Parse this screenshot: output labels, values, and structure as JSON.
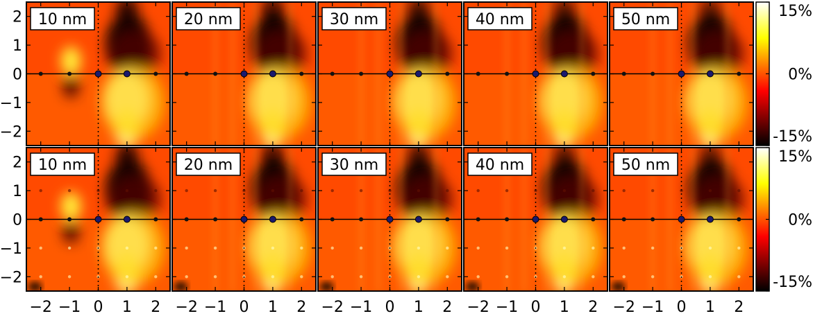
{
  "chart_data": [
    {
      "type": "heatmap",
      "row": "top",
      "panels": [
        {
          "label": "10 nm",
          "vortex_x": -1,
          "strength": 1.0
        },
        {
          "label": "20 nm",
          "vortex_x": null,
          "strength": 0.9
        },
        {
          "label": "30 nm",
          "vortex_x": null,
          "strength": 0.85
        },
        {
          "label": "40 nm",
          "vortex_x": null,
          "strength": 0.75
        },
        {
          "label": "50 nm",
          "vortex_x": null,
          "strength": 0.7
        }
      ],
      "dots": [
        {
          "x": -2,
          "y": 0
        },
        {
          "x": -1,
          "y": 0
        },
        {
          "x": 0,
          "y": 0
        },
        {
          "x": 1,
          "y": 0
        },
        {
          "x": 2,
          "y": 0
        }
      ],
      "highlight_dots": [
        {
          "x": 0,
          "y": 0
        },
        {
          "x": 1,
          "y": 0
        }
      ]
    },
    {
      "type": "heatmap",
      "row": "bottom",
      "panels": [
        {
          "label": "10 nm",
          "vortex_x": -1,
          "strength": 1.0
        },
        {
          "label": "20 nm",
          "vortex_x": null,
          "strength": 0.9
        },
        {
          "label": "30 nm",
          "vortex_x": null,
          "strength": 0.85
        },
        {
          "label": "40 nm",
          "vortex_x": null,
          "strength": 0.75
        },
        {
          "label": "50 nm",
          "vortex_x": null,
          "strength": 0.7
        }
      ],
      "dots": [
        {
          "x": -2,
          "y": 0
        },
        {
          "x": -1,
          "y": 0
        },
        {
          "x": 0,
          "y": 0
        },
        {
          "x": 1,
          "y": 0
        },
        {
          "x": 2,
          "y": 0
        }
      ],
      "highlight_dots": [
        {
          "x": 0,
          "y": 0
        },
        {
          "x": 1,
          "y": 0
        }
      ]
    }
  ],
  "axes": {
    "xlim": [
      -2.5,
      2.5
    ],
    "ylim": [
      -2.5,
      2.5
    ],
    "x_ticks": [
      "−2",
      "−1",
      "0",
      "1",
      "2"
    ],
    "x_tick_values": [
      -2,
      -1,
      0,
      1,
      2
    ],
    "y_ticks": [
      "2",
      "1",
      "0",
      "−1",
      "−2"
    ],
    "y_tick_values": [
      2,
      1,
      0,
      -1,
      -2
    ]
  },
  "colorbar": {
    "colormap": "hot",
    "range_percent": [
      -15,
      15
    ],
    "labels": [
      "15%",
      "0%",
      "-15%"
    ],
    "label_values": [
      15,
      0,
      -15
    ]
  },
  "colors": {
    "hot_dark": "#000000",
    "hot_red": "#ff0000",
    "hot_yellow": "#ffff00",
    "hot_white": "#ffffff",
    "dot": "#111111",
    "highlight_dot": "#1a1a6e"
  }
}
